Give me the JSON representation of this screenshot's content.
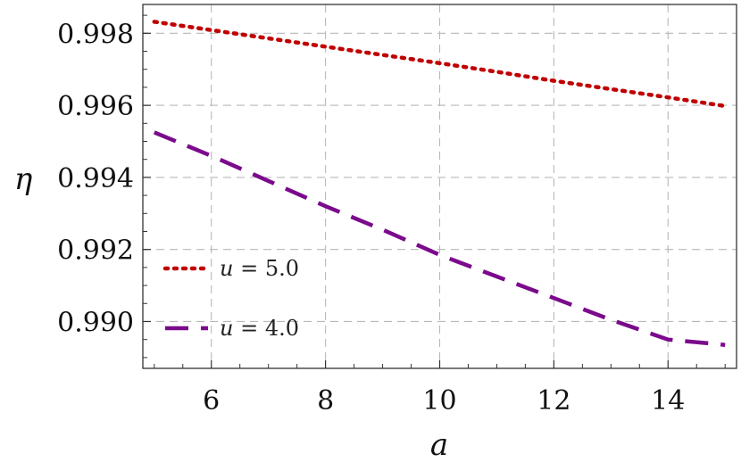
{
  "chart_data": {
    "type": "line",
    "title": "",
    "xlabel": "a",
    "ylabel": "η",
    "xlim": [
      4.8,
      15.2
    ],
    "ylim": [
      0.9887,
      0.9988
    ],
    "xticks": [
      6,
      8,
      10,
      12,
      14
    ],
    "xtick_labels": [
      "6",
      "8",
      "10",
      "12",
      "14"
    ],
    "yticks": [
      0.99,
      0.992,
      0.994,
      0.996,
      0.998
    ],
    "ytick_labels": [
      "0.990",
      "0.992",
      "0.994",
      "0.996",
      "0.998"
    ],
    "grid": true,
    "legend_position": "bottom-left",
    "series": [
      {
        "name": "u = 5.0",
        "legend_var": "u",
        "legend_value": "= 5.0",
        "color": "#c00000",
        "style": "dotted",
        "x": [
          5,
          6,
          7,
          8,
          9,
          10,
          11,
          12,
          13,
          14,
          15
        ],
        "y": [
          0.99832,
          0.99809,
          0.99786,
          0.99763,
          0.9974,
          0.99717,
          0.99693,
          0.99668,
          0.99645,
          0.99622,
          0.99598
        ]
      },
      {
        "name": "u = 4.0",
        "legend_var": "u",
        "legend_value": "= 4.0",
        "color": "#7b0a8c",
        "style": "dashed",
        "x": [
          5,
          6,
          7,
          8,
          9,
          10,
          11,
          12,
          13,
          14,
          15
        ],
        "y": [
          0.99525,
          0.9946,
          0.9939,
          0.9932,
          0.99255,
          0.99185,
          0.99125,
          0.99065,
          0.99005,
          0.9895,
          0.98935
        ]
      }
    ]
  }
}
